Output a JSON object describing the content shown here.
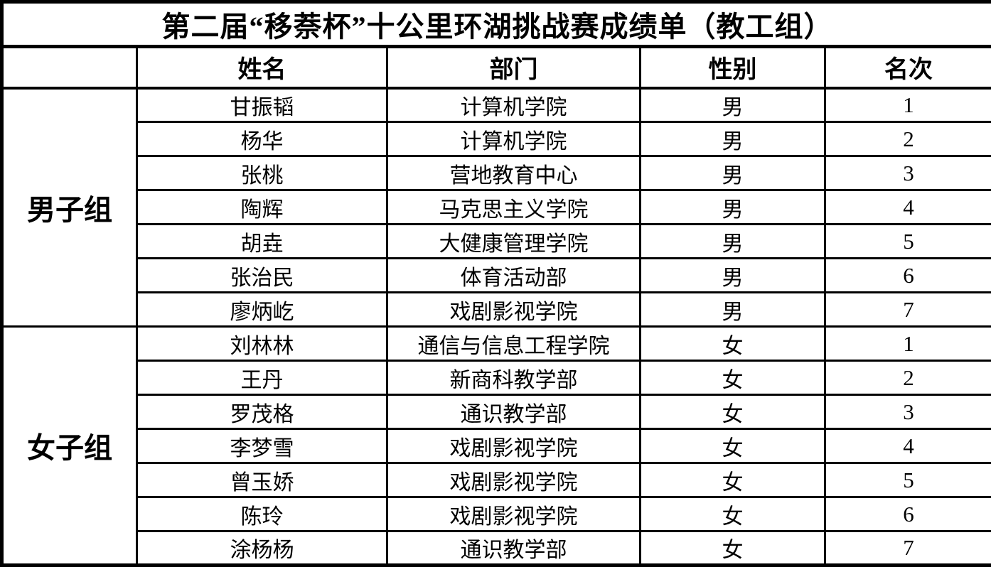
{
  "title": "第二届“移萘杯”十公里环湖挑战赛成绩单（教工组）",
  "colors": {
    "background": "#ffffff",
    "text": "#000000",
    "border": "#000000"
  },
  "table": {
    "headers": {
      "group": "",
      "name": "姓名",
      "department": "部门",
      "gender": "性别",
      "rank": "名次"
    },
    "groups": [
      {
        "label": "男子组",
        "rows": [
          {
            "name": "甘振韬",
            "department": "计算机学院",
            "gender": "男",
            "rank": "1"
          },
          {
            "name": "杨华",
            "department": "计算机学院",
            "gender": "男",
            "rank": "2"
          },
          {
            "name": "张桃",
            "department": "营地教育中心",
            "gender": "男",
            "rank": "3"
          },
          {
            "name": "陶辉",
            "department": "马克思主义学院",
            "gender": "男",
            "rank": "4"
          },
          {
            "name": "胡垚",
            "department": "大健康管理学院",
            "gender": "男",
            "rank": "5"
          },
          {
            "name": "张治民",
            "department": "体育活动部",
            "gender": "男",
            "rank": "6"
          },
          {
            "name": "廖炳屹",
            "department": "戏剧影视学院",
            "gender": "男",
            "rank": "7"
          }
        ]
      },
      {
        "label": "女子组",
        "rows": [
          {
            "name": "刘林林",
            "department": "通信与信息工程学院",
            "gender": "女",
            "rank": "1"
          },
          {
            "name": "王丹",
            "department": "新商科教学部",
            "gender": "女",
            "rank": "2"
          },
          {
            "name": "罗茂格",
            "department": "通识教学部",
            "gender": "女",
            "rank": "3"
          },
          {
            "name": "李梦雪",
            "department": "戏剧影视学院",
            "gender": "女",
            "rank": "4"
          },
          {
            "name": "曾玉娇",
            "department": "戏剧影视学院",
            "gender": "女",
            "rank": "5"
          },
          {
            "name": "陈玲",
            "department": "戏剧影视学院",
            "gender": "女",
            "rank": "6"
          },
          {
            "name": "涂杨杨",
            "department": "通识教学部",
            "gender": "女",
            "rank": "7"
          }
        ]
      }
    ]
  }
}
